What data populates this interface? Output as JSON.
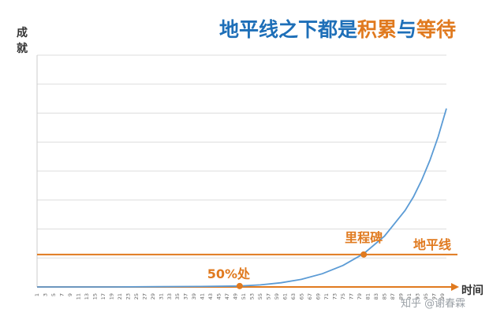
{
  "title": {
    "part1": "地平线之下都是",
    "part2": "积累",
    "part3": "与",
    "part4": "等待"
  },
  "colors": {
    "blue": "#1e6fb8",
    "orange": "#e07a1f",
    "curve": "#5b9bd5",
    "grid": "#dddddd",
    "axis": "#555555"
  },
  "watermark": "知乎 @谢春霖",
  "chart_data": {
    "type": "line",
    "xlabel": "时间",
    "ylabel": "成就",
    "x_ticks": [
      1,
      3,
      5,
      7,
      9,
      11,
      13,
      15,
      17,
      19,
      21,
      23,
      25,
      27,
      29,
      31,
      33,
      35,
      37,
      39,
      41,
      43,
      45,
      47,
      49,
      51,
      53,
      55,
      57,
      59,
      61,
      63,
      65,
      67,
      69,
      71,
      73,
      75,
      77,
      79,
      81,
      83,
      85,
      87,
      89,
      91,
      93,
      95,
      97,
      99
    ],
    "xlim": [
      1,
      100
    ],
    "ylim": [
      0,
      100
    ],
    "grid": true,
    "series": [
      {
        "x": [
          1,
          10,
          20,
          30,
          40,
          50,
          55,
          60,
          65,
          70,
          75,
          80,
          85,
          90,
          92,
          94,
          96,
          98,
          100
        ],
        "y": [
          0.0,
          0.0,
          0.0,
          0.1,
          0.2,
          0.4,
          0.9,
          1.8,
          3.3,
          5.7,
          9.3,
          14.4,
          21.9,
          33.0,
          38.8,
          46.0,
          54.6,
          64.8,
          77.0
        ]
      }
    ],
    "horizon_line": {
      "label": "地平线",
      "y": 14.0
    },
    "annotations": [
      {
        "label": "50%处",
        "x": 50,
        "y": 0.4
      },
      {
        "label": "里程碑",
        "x": 80,
        "y": 14.0
      }
    ]
  }
}
